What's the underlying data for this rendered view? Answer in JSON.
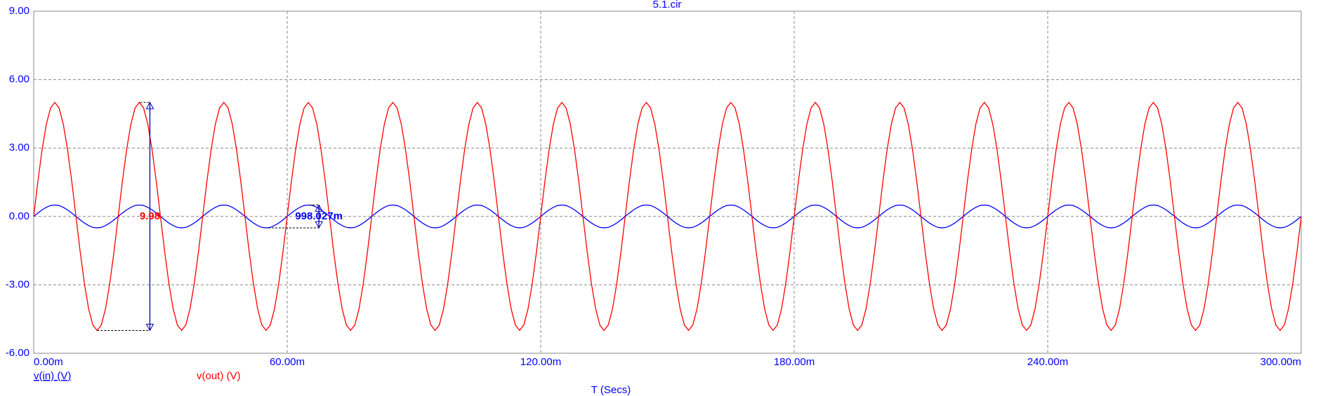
{
  "chart_data": {
    "type": "line",
    "title": "5.1.cir",
    "xlabel": "T (Secs)",
    "x": [
      0,
      0.001,
      0.002,
      0.003,
      0.004,
      0.005,
      0.006,
      0.007,
      0.008,
      0.009,
      0.01,
      0.011,
      0.012,
      0.013,
      0.014,
      0.015,
      0.016,
      0.017,
      0.018,
      0.019,
      0.02,
      0.021,
      0.022,
      0.023,
      0.024,
      0.025,
      0.026,
      0.027,
      0.028,
      0.029,
      0.03,
      0.031,
      0.032,
      0.033,
      0.034,
      0.035,
      0.036,
      0.037,
      0.038,
      0.039,
      0.04,
      0.041,
      0.042,
      0.043,
      0.044,
      0.045,
      0.046,
      0.047,
      0.048,
      0.049,
      0.05,
      0.051,
      0.052,
      0.053,
      0.054,
      0.055,
      0.056,
      0.057,
      0.058,
      0.059,
      0.06,
      0.061,
      0.062,
      0.063,
      0.064,
      0.065,
      0.066,
      0.067,
      0.068,
      0.069,
      0.07,
      0.071,
      0.072,
      0.073,
      0.074,
      0.075,
      0.076,
      0.077,
      0.078,
      0.079,
      0.08,
      0.081,
      0.082,
      0.083,
      0.084,
      0.085,
      0.086,
      0.087,
      0.088,
      0.089,
      0.09,
      0.091,
      0.092,
      0.093,
      0.094,
      0.095,
      0.096,
      0.097,
      0.098,
      0.099,
      0.1,
      0.101,
      0.102,
      0.103,
      0.104,
      0.105,
      0.106,
      0.107,
      0.108,
      0.109,
      0.11,
      0.111,
      0.112,
      0.113,
      0.114,
      0.115,
      0.116,
      0.117,
      0.118,
      0.119,
      0.12,
      0.121,
      0.122,
      0.123,
      0.124,
      0.125,
      0.126,
      0.127,
      0.128,
      0.129,
      0.13,
      0.131,
      0.132,
      0.133,
      0.134,
      0.135,
      0.136,
      0.137,
      0.138,
      0.139,
      0.14,
      0.141,
      0.142,
      0.143,
      0.144,
      0.145,
      0.146,
      0.147,
      0.148,
      0.149,
      0.15,
      0.151,
      0.152,
      0.153,
      0.154,
      0.155,
      0.156,
      0.157,
      0.158,
      0.159,
      0.16,
      0.161,
      0.162,
      0.163,
      0.164,
      0.165,
      0.166,
      0.167,
      0.168,
      0.169,
      0.17,
      0.171,
      0.172,
      0.173,
      0.174,
      0.175,
      0.176,
      0.177,
      0.178,
      0.179,
      0.18,
      0.181,
      0.182,
      0.183,
      0.184,
      0.185,
      0.186,
      0.187,
      0.188,
      0.189,
      0.19,
      0.191,
      0.192,
      0.193,
      0.194,
      0.195,
      0.196,
      0.197,
      0.198,
      0.199,
      0.2,
      0.201,
      0.202,
      0.203,
      0.204,
      0.205,
      0.206,
      0.207,
      0.208,
      0.209,
      0.21,
      0.211,
      0.212,
      0.213,
      0.214,
      0.215,
      0.216,
      0.217,
      0.218,
      0.219,
      0.22,
      0.221,
      0.222,
      0.223,
      0.224,
      0.225,
      0.226,
      0.227,
      0.228,
      0.229,
      0.23,
      0.231,
      0.232,
      0.233,
      0.234,
      0.235,
      0.236,
      0.237,
      0.238,
      0.239,
      0.24,
      0.241,
      0.242,
      0.243,
      0.244,
      0.245,
      0.246,
      0.247,
      0.248,
      0.249,
      0.25,
      0.251,
      0.252,
      0.253,
      0.254,
      0.255,
      0.256,
      0.257,
      0.258,
      0.259,
      0.26,
      0.261,
      0.262,
      0.263,
      0.264,
      0.265,
      0.266,
      0.267,
      0.268,
      0.269,
      0.27,
      0.271,
      0.272,
      0.273,
      0.274,
      0.275,
      0.276,
      0.277,
      0.278,
      0.279,
      0.28,
      0.281,
      0.282,
      0.283,
      0.284,
      0.285,
      0.286,
      0.287,
      0.288,
      0.289,
      0.29,
      0.291,
      0.292,
      0.293,
      0.294,
      0.295,
      0.296,
      0.297,
      0.298,
      0.299,
      0.3
    ],
    "series": [
      {
        "name": "v(in) (V)",
        "color": "#0000ff",
        "values": [
          0,
          0.15,
          0.29,
          0.4,
          0.48,
          0.5,
          0.48,
          0.4,
          0.29,
          0.15,
          0,
          -0.15,
          -0.29,
          -0.4,
          -0.48,
          -0.5,
          -0.48,
          -0.4,
          -0.29,
          -0.15,
          0,
          0.15,
          0.29,
          0.4,
          0.48,
          0.5,
          0.48,
          0.4,
          0.29,
          0.15,
          0,
          -0.15,
          -0.29,
          -0.4,
          -0.48,
          -0.5,
          -0.48,
          -0.4,
          -0.29,
          -0.15,
          0,
          0.15,
          0.29,
          0.4,
          0.48,
          0.5,
          0.48,
          0.4,
          0.29,
          0.15,
          0,
          -0.15,
          -0.29,
          -0.4,
          -0.48,
          -0.5,
          -0.48,
          -0.4,
          -0.29,
          -0.15,
          0,
          0.15,
          0.29,
          0.4,
          0.48,
          0.5,
          0.48,
          0.4,
          0.29,
          0.15,
          0,
          -0.15,
          -0.29,
          -0.4,
          -0.48,
          -0.5,
          -0.48,
          -0.4,
          -0.29,
          -0.15,
          0,
          0.15,
          0.29,
          0.4,
          0.48,
          0.5,
          0.48,
          0.4,
          0.29,
          0.15,
          0,
          -0.15,
          -0.29,
          -0.4,
          -0.48,
          -0.5,
          -0.48,
          -0.4,
          -0.29,
          -0.15,
          0,
          0.15,
          0.29,
          0.4,
          0.48,
          0.5,
          0.48,
          0.4,
          0.29,
          0.15,
          0,
          -0.15,
          -0.29,
          -0.4,
          -0.48,
          -0.5,
          -0.48,
          -0.4,
          -0.29,
          -0.15,
          0,
          0.15,
          0.29,
          0.4,
          0.48,
          0.5,
          0.48,
          0.4,
          0.29,
          0.15,
          0,
          -0.15,
          -0.29,
          -0.4,
          -0.48,
          -0.5,
          -0.48,
          -0.4,
          -0.29,
          -0.15,
          0,
          0.15,
          0.29,
          0.4,
          0.48,
          0.5,
          0.48,
          0.4,
          0.29,
          0.15,
          0,
          -0.15,
          -0.29,
          -0.4,
          -0.48,
          -0.5,
          -0.48,
          -0.4,
          -0.29,
          -0.15,
          0,
          0.15,
          0.29,
          0.4,
          0.48,
          0.5,
          0.48,
          0.4,
          0.29,
          0.15,
          0,
          -0.15,
          -0.29,
          -0.4,
          -0.48,
          -0.5,
          -0.48,
          -0.4,
          -0.29,
          -0.15,
          0,
          0.15,
          0.29,
          0.4,
          0.48,
          0.5,
          0.48,
          0.4,
          0.29,
          0.15,
          0,
          -0.15,
          -0.29,
          -0.4,
          -0.48,
          -0.5,
          -0.48,
          -0.4,
          -0.29,
          -0.15,
          0,
          0.15,
          0.29,
          0.4,
          0.48,
          0.5,
          0.48,
          0.4,
          0.29,
          0.15,
          0,
          -0.15,
          -0.29,
          -0.4,
          -0.48,
          -0.5,
          -0.48,
          -0.4,
          -0.29,
          -0.15,
          0,
          0.15,
          0.29,
          0.4,
          0.48,
          0.5,
          0.48,
          0.4,
          0.29,
          0.15,
          0,
          -0.15,
          -0.29,
          -0.4,
          -0.48,
          -0.5,
          -0.48,
          -0.4,
          -0.29,
          -0.15,
          0,
          0.15,
          0.29,
          0.4,
          0.48,
          0.5,
          0.48,
          0.4,
          0.29,
          0.15,
          0,
          -0.15,
          -0.29,
          -0.4,
          -0.48,
          -0.5,
          -0.48,
          -0.4,
          -0.29,
          -0.15,
          0,
          0.15,
          0.29,
          0.4,
          0.48,
          0.5,
          0.48,
          0.4,
          0.29,
          0.15,
          0,
          -0.15,
          -0.29,
          -0.4,
          -0.48,
          -0.5,
          -0.48,
          -0.4,
          -0.29,
          -0.15,
          0,
          0.15,
          0.29,
          0.4,
          0.48,
          0.5,
          0.48,
          0.4,
          0.29,
          0.15,
          0,
          -0.15,
          -0.29,
          -0.4,
          -0.48,
          -0.5,
          -0.48,
          -0.4,
          -0.29,
          -0.15,
          0
        ]
      },
      {
        "name": "v(out) (V)",
        "color": "#ff0000",
        "values": [
          0,
          1.55,
          2.94,
          4.05,
          4.76,
          5,
          4.76,
          4.05,
          2.94,
          1.55,
          0,
          -1.55,
          -2.94,
          -4.05,
          -4.76,
          -5,
          -4.76,
          -4.05,
          -2.94,
          -1.55,
          0,
          1.55,
          2.94,
          4.05,
          4.76,
          5,
          4.76,
          4.05,
          2.94,
          1.55,
          0,
          -1.55,
          -2.94,
          -4.05,
          -4.76,
          -5,
          -4.76,
          -4.05,
          -2.94,
          -1.55,
          0,
          1.55,
          2.94,
          4.05,
          4.76,
          5,
          4.76,
          4.05,
          2.94,
          1.55,
          0,
          -1.55,
          -2.94,
          -4.05,
          -4.76,
          -5,
          -4.76,
          -4.05,
          -2.94,
          -1.55,
          0,
          1.55,
          2.94,
          4.05,
          4.76,
          5,
          4.76,
          4.05,
          2.94,
          1.55,
          0,
          -1.55,
          -2.94,
          -4.05,
          -4.76,
          -5,
          -4.76,
          -4.05,
          -2.94,
          -1.55,
          0,
          1.55,
          2.94,
          4.05,
          4.76,
          5,
          4.76,
          4.05,
          2.94,
          1.55,
          0,
          -1.55,
          -2.94,
          -4.05,
          -4.76,
          -5,
          -4.76,
          -4.05,
          -2.94,
          -1.55,
          0,
          1.55,
          2.94,
          4.05,
          4.76,
          5,
          4.76,
          4.05,
          2.94,
          1.55,
          0,
          -1.55,
          -2.94,
          -4.05,
          -4.76,
          -5,
          -4.76,
          -4.05,
          -2.94,
          -1.55,
          0,
          1.55,
          2.94,
          4.05,
          4.76,
          5,
          4.76,
          4.05,
          2.94,
          1.55,
          0,
          -1.55,
          -2.94,
          -4.05,
          -4.76,
          -5,
          -4.76,
          -4.05,
          -2.94,
          -1.55,
          0,
          1.55,
          2.94,
          4.05,
          4.76,
          5,
          4.76,
          4.05,
          2.94,
          1.55,
          0,
          -1.55,
          -2.94,
          -4.05,
          -4.76,
          -5,
          -4.76,
          -4.05,
          -2.94,
          -1.55,
          0,
          1.55,
          2.94,
          4.05,
          4.76,
          5,
          4.76,
          4.05,
          2.94,
          1.55,
          0,
          -1.55,
          -2.94,
          -4.05,
          -4.76,
          -5,
          -4.76,
          -4.05,
          -2.94,
          -1.55,
          0,
          1.55,
          2.94,
          4.05,
          4.76,
          5,
          4.76,
          4.05,
          2.94,
          1.55,
          0,
          -1.55,
          -2.94,
          -4.05,
          -4.76,
          -5,
          -4.76,
          -4.05,
          -2.94,
          -1.55,
          0,
          1.55,
          2.94,
          4.05,
          4.76,
          5,
          4.76,
          4.05,
          2.94,
          1.55,
          0,
          -1.55,
          -2.94,
          -4.05,
          -4.76,
          -5,
          -4.76,
          -4.05,
          -2.94,
          -1.55,
          0,
          1.55,
          2.94,
          4.05,
          4.76,
          5,
          4.76,
          4.05,
          2.94,
          1.55,
          0,
          -1.55,
          -2.94,
          -4.05,
          -4.76,
          -5,
          -4.76,
          -4.05,
          -2.94,
          -1.55,
          0,
          1.55,
          2.94,
          4.05,
          4.76,
          5,
          4.76,
          4.05,
          2.94,
          1.55,
          0,
          -1.55,
          -2.94,
          -4.05,
          -4.76,
          -5,
          -4.76,
          -4.05,
          -2.94,
          -1.55,
          0,
          1.55,
          2.94,
          4.05,
          4.76,
          5,
          4.76,
          4.05,
          2.94,
          1.55,
          0,
          -1.55,
          -2.94,
          -4.05,
          -4.76,
          -5,
          -4.76,
          -4.05,
          -2.94,
          -1.55,
          0,
          1.55,
          2.94,
          4.05,
          4.76,
          5,
          4.76,
          4.05,
          2.94,
          1.55,
          0,
          -1.55,
          -2.94,
          -4.05,
          -4.76,
          -5,
          -4.76,
          -4.05,
          -2.94,
          -1.55,
          0
        ]
      }
    ],
    "xlim": [
      0,
      0.3
    ],
    "xticks": [
      {
        "value": 0,
        "label": "0.00m"
      },
      {
        "value": 0.06,
        "label": "60.00m"
      },
      {
        "value": 0.12,
        "label": "120.00m"
      },
      {
        "value": 0.18,
        "label": "180.00m"
      },
      {
        "value": 0.24,
        "label": "240.00m"
      },
      {
        "value": 0.3,
        "label": "300.00m"
      }
    ],
    "ylim": [
      -6,
      9
    ],
    "yticks": [
      {
        "value": -6,
        "label": "-6.00"
      },
      {
        "value": -3,
        "label": "-3.00"
      },
      {
        "value": 0,
        "label": "0.00"
      },
      {
        "value": 3,
        "label": "3.00"
      },
      {
        "value": 6,
        "label": "6.00"
      },
      {
        "value": 9,
        "label": "9.00"
      }
    ],
    "grid": true,
    "annotations": [
      {
        "text": "9.98",
        "color": "#ff0000",
        "x": 0.0275,
        "y_top": 5,
        "y_bottom": -5,
        "x_ref": 0.015
      },
      {
        "text": "998.027m",
        "color": "#0000ff",
        "x": 0.0675,
        "y_top": 0.5,
        "y_bottom": -0.5,
        "x_ref": 0.0555
      }
    ]
  }
}
